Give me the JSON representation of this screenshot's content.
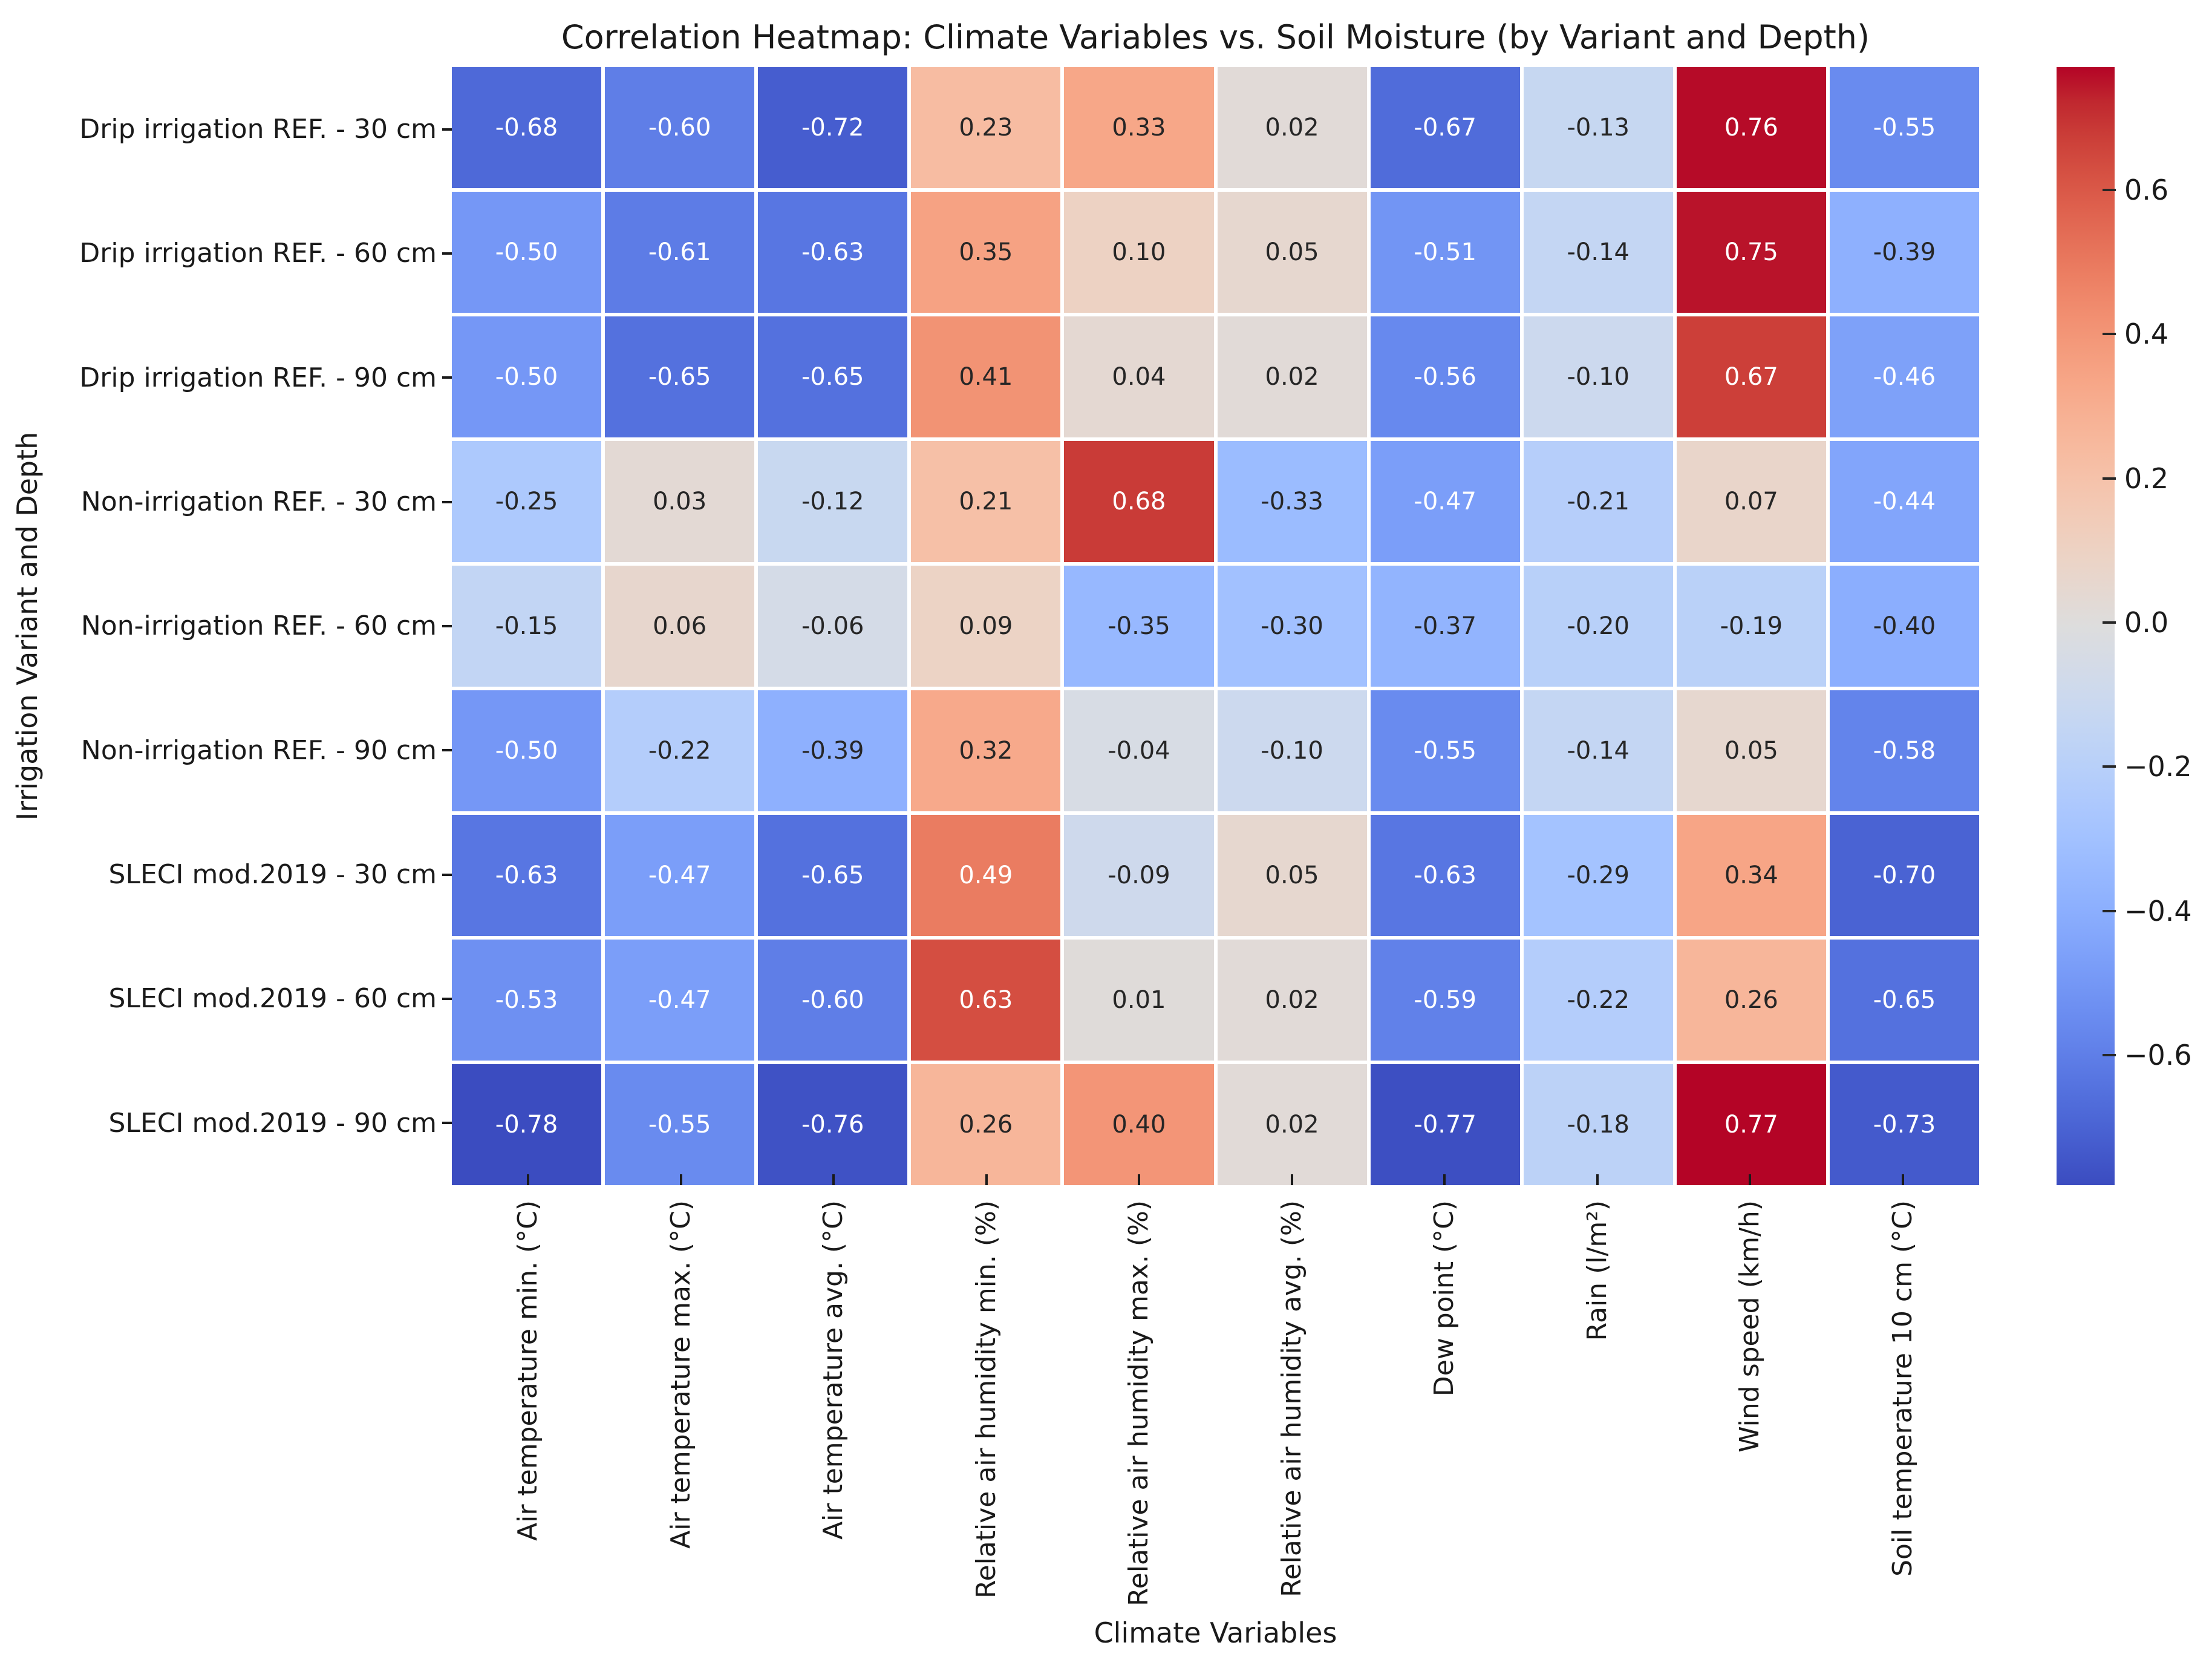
{
  "chart_data": {
    "type": "heatmap",
    "title": "Correlation Heatmap: Climate Variables vs. Soil Moisture (by Variant and Depth)",
    "xlabel": "Climate Variables",
    "ylabel": "Irrigation Variant and Depth",
    "columns": [
      "Air temperature min. (°C)",
      "Air temperature max. (°C)",
      "Air temperature avg. (°C)",
      "Relative air humidity min. (%)",
      "Relative air humidity max. (%)",
      "Relative air humidity avg. (%)",
      "Dew point (°C)",
      "Rain (l/m²)",
      "Wind speed (km/h)",
      "Soil temperature 10 cm (°C)"
    ],
    "rows": [
      "Drip irrigation REF. - 30 cm",
      "Drip irrigation REF. - 60 cm",
      "Drip irrigation REF. - 90 cm",
      "Non-irrigation REF. - 30 cm",
      "Non-irrigation REF. - 60 cm",
      "Non-irrigation REF. - 90 cm",
      "SLECI mod.2019 - 30 cm",
      "SLECI mod.2019 - 60 cm",
      "SLECI mod.2019 - 90 cm"
    ],
    "values": [
      [
        -0.68,
        -0.6,
        -0.72,
        0.23,
        0.33,
        0.02,
        -0.67,
        -0.13,
        0.76,
        -0.55
      ],
      [
        -0.5,
        -0.61,
        -0.63,
        0.35,
        0.1,
        0.05,
        -0.51,
        -0.14,
        0.75,
        -0.39
      ],
      [
        -0.5,
        -0.65,
        -0.65,
        0.41,
        0.04,
        0.02,
        -0.56,
        -0.1,
        0.67,
        -0.46
      ],
      [
        -0.25,
        0.03,
        -0.12,
        0.21,
        0.68,
        -0.33,
        -0.47,
        -0.21,
        0.07,
        -0.44
      ],
      [
        -0.15,
        0.06,
        -0.06,
        0.09,
        -0.35,
        -0.3,
        -0.37,
        -0.2,
        -0.19,
        -0.4
      ],
      [
        -0.5,
        -0.22,
        -0.39,
        0.32,
        -0.04,
        -0.1,
        -0.55,
        -0.14,
        0.05,
        -0.58
      ],
      [
        -0.63,
        -0.47,
        -0.65,
        0.49,
        -0.09,
        0.05,
        -0.63,
        -0.29,
        0.34,
        -0.7
      ],
      [
        -0.53,
        -0.47,
        -0.6,
        0.63,
        0.01,
        0.02,
        -0.59,
        -0.22,
        0.26,
        -0.65
      ],
      [
        -0.78,
        -0.55,
        -0.76,
        0.26,
        0.4,
        0.02,
        -0.77,
        -0.18,
        0.77,
        -0.73
      ]
    ],
    "vmin": -0.78,
    "vmax": 0.77,
    "annotation_format": ".2f",
    "colormap": "coolwarm",
    "colormap_rgb_stops": [
      [
        59,
        76,
        192
      ],
      [
        68,
        90,
        204
      ],
      [
        77,
        104,
        215
      ],
      [
        87,
        117,
        225
      ],
      [
        98,
        130,
        234
      ],
      [
        108,
        142,
        241
      ],
      [
        119,
        154,
        247
      ],
      [
        130,
        165,
        251
      ],
      [
        141,
        176,
        254
      ],
      [
        152,
        185,
        255
      ],
      [
        163,
        194,
        255
      ],
      [
        174,
        201,
        253
      ],
      [
        184,
        208,
        249
      ],
      [
        194,
        213,
        244
      ],
      [
        204,
        217,
        238
      ],
      [
        213,
        219,
        230
      ],
      [
        221,
        221,
        221
      ],
      [
        229,
        216,
        209
      ],
      [
        236,
        211,
        197
      ],
      [
        241,
        204,
        185
      ],
      [
        245,
        196,
        173
      ],
      [
        247,
        187,
        160
      ],
      [
        247,
        177,
        148
      ],
      [
        247,
        166,
        135
      ],
      [
        244,
        154,
        123
      ],
      [
        241,
        141,
        111
      ],
      [
        236,
        127,
        99
      ],
      [
        229,
        112,
        88
      ],
      [
        222,
        96,
        77
      ],
      [
        213,
        80,
        66
      ],
      [
        203,
        62,
        56
      ],
      [
        192,
        40,
        47
      ],
      [
        180,
        4,
        38
      ]
    ],
    "colorbar_ticks": [
      0.6,
      0.4,
      0.2,
      0.0,
      -0.2,
      -0.4,
      -0.6
    ],
    "colors": {
      "background": "#ffffff",
      "grid_line": "#ffffff",
      "annotation_dark": "#262626",
      "annotation_light": "#ffffff",
      "axis_text": "#1a1a1a",
      "colormap_min": "#3b4cc0",
      "colormap_mid": "#dddddd",
      "colormap_max": "#b40426"
    },
    "luminance_threshold": 0.41,
    "legend_position": "right-colorbar",
    "grid": "off"
  }
}
